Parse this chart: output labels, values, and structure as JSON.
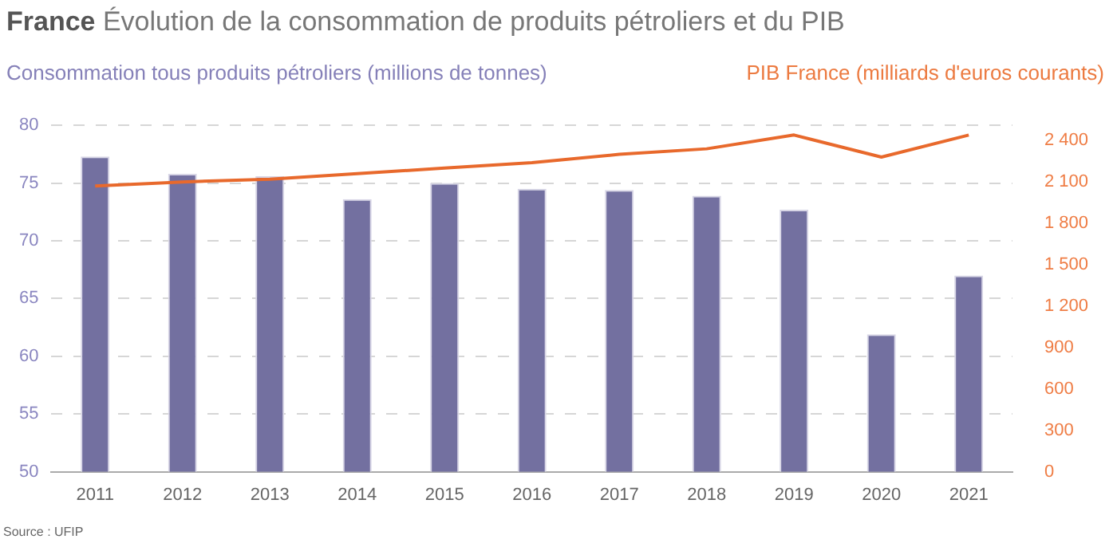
{
  "chart_data": {
    "type": "bar",
    "title": "France Évolution de la consommation de produits pétroliers et du PIB",
    "ylabel": "Consommation tous produits pétroliers (millions de tonnes)",
    "y2label": "PIB France (milliards d'euros courants)",
    "categories": [
      "2011",
      "2012",
      "2013",
      "2014",
      "2015",
      "2016",
      "2017",
      "2018",
      "2019",
      "2020",
      "2021"
    ],
    "series": [
      {
        "color": "#7370a0",
        "values": [
          77.3,
          75.8,
          75.6,
          73.6,
          75.0,
          74.5,
          74.4,
          73.9,
          72.7,
          61.9,
          67.0
        ]
      },
      {
        "type": "line",
        "axis": "y2",
        "color": "#e8692c",
        "values": [
          2070,
          2100,
          2120,
          2160,
          2200,
          2240,
          2300,
          2340,
          2440,
          2280,
          2440
        ]
      }
    ],
    "ylim": [
      50,
      80
    ],
    "yticks": [
      50,
      55,
      60,
      65,
      70,
      75,
      80
    ],
    "y2lim": [
      0,
      2510
    ],
    "y2ticks": [
      0,
      300,
      600,
      900,
      {
        "value": 1200,
        "label": "1 200"
      },
      {
        "value": 1500,
        "label": "1 500"
      },
      {
        "value": 1800,
        "label": "1 800"
      },
      {
        "value": 2100,
        "label": "2 100"
      },
      {
        "value": 2400,
        "label": "2 400"
      }
    ],
    "grid": "y",
    "marker": "none",
    "annotations": [
      "Source : UFIP"
    ]
  }
}
